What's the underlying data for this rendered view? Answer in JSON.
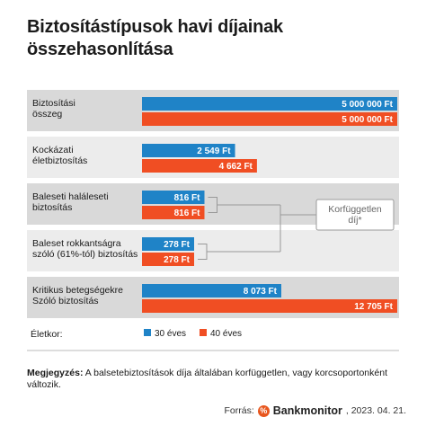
{
  "title": "Biztosítástípusok havi díjainak összehasonlítása",
  "chart_data": {
    "type": "bar",
    "orientation": "horizontal",
    "axis_scale": "broken (not proportional)",
    "categories": [
      [
        "Biztosítási",
        "összeg"
      ],
      [
        "Kockázati",
        "életbiztosítás"
      ],
      [
        "Baleseti haláleseti",
        "biztosítás"
      ],
      [
        "Baleset rokkantságra",
        "szóló (61%-tól) biztosítás"
      ],
      [
        "Kritikus betegségekre",
        "Szóló biztosítás"
      ]
    ],
    "series": [
      {
        "name": "30 éves",
        "color": "#1f83c7",
        "values": [
          5000000,
          2549,
          816,
          278,
          8073
        ],
        "labels": [
          "5 000 000 Ft",
          "2 549 Ft",
          "816 Ft",
          "278 Ft",
          "8 073 Ft"
        ]
      },
      {
        "name": "40 éves",
        "color": "#f04e23",
        "values": [
          5000000,
          4662,
          816,
          278,
          12705
        ],
        "labels": [
          "5 000 000 Ft",
          "4 662 Ft",
          "816 Ft",
          "278 Ft",
          "12 705 Ft"
        ]
      }
    ],
    "legend_title": "Életkor:",
    "legend_position": "bottom",
    "annotation": "Korfüggetlen díj*",
    "annotation_targets": [
      2,
      3
    ],
    "row_backgrounds": [
      "#d9d9d9",
      "#ececec"
    ]
  },
  "note": {
    "label": "Megjegyzés:",
    "text": "A balsetebiztosítások díja általában korfüggetlen, vagy korcsoportonként változik."
  },
  "source": {
    "prefix": "Forrás:",
    "brand": "Bankmonitor",
    "date": ", 2023. 04. 21."
  }
}
